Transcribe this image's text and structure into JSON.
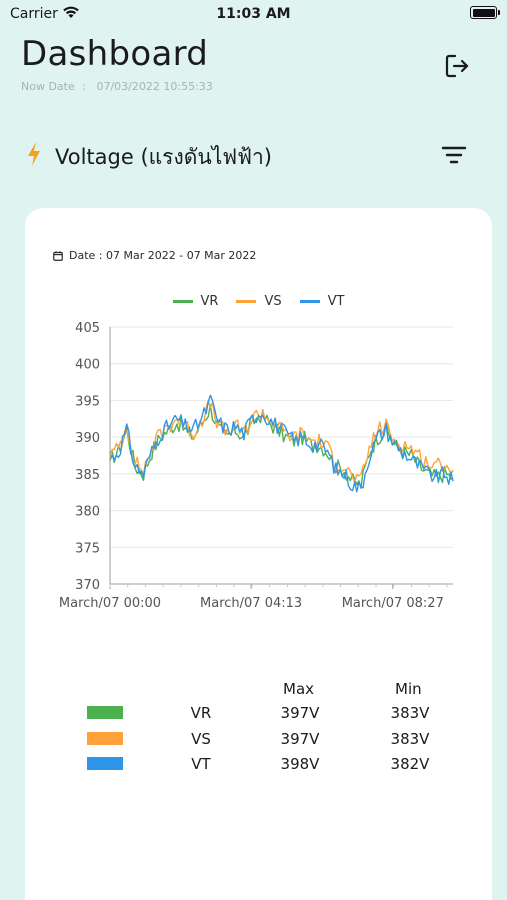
{
  "status_bar": {
    "carrier": "Carrier",
    "time": "11:03 AM"
  },
  "header": {
    "title": "Dashboard",
    "now_date_label": "Now Date",
    "now_date_sep": ":",
    "now_date_value": "07/03/2022 10:55:33",
    "logout_icon": "logout-icon"
  },
  "section": {
    "icon": "lightning-bolt-icon",
    "title": "Voltage (แรงดันไฟฟ้า)",
    "filter_icon": "filter-icon"
  },
  "card": {
    "date_range": "Date : 07 Mar 2022 - 07 Mar 2022"
  },
  "colors": {
    "VR": "#4caf50",
    "VS": "#ffa23a",
    "VT": "#2f95e8",
    "accent": "#f7a21b"
  },
  "chart_data": {
    "type": "line",
    "ylim": [
      370,
      405
    ],
    "yticks": [
      "405",
      "400",
      "395",
      "390",
      "385",
      "380",
      "375",
      "370"
    ],
    "xticks": [
      "March/07 00:00",
      "March/07 04:13",
      "March/07 08:27"
    ],
    "xrange_hours": [
      0,
      10.25
    ],
    "grid": true,
    "legend_position": "top-center",
    "series": [
      {
        "name": "VR",
        "color": "#4caf50",
        "x": [
          0,
          0.25,
          0.5,
          0.75,
          1,
          1.25,
          1.5,
          1.75,
          2,
          2.25,
          2.5,
          2.75,
          3,
          3.25,
          3.5,
          3.75,
          4,
          4.25,
          4.5,
          4.75,
          5,
          5.25,
          5.5,
          5.75,
          6,
          6.25,
          6.5,
          6.75,
          7,
          7.25,
          7.5,
          7.75,
          8,
          8.25,
          8.5,
          8.75,
          9,
          9.25,
          9.5,
          9.75,
          10,
          10.25
        ],
        "values": [
          387,
          388,
          391,
          386,
          385,
          388,
          390,
          391,
          392,
          391,
          390,
          392,
          394,
          391,
          390,
          391,
          390,
          392,
          393,
          392,
          391,
          390,
          389.5,
          390,
          389,
          389,
          388,
          386,
          385.5,
          384,
          383.5,
          388,
          390,
          391,
          389,
          388,
          387.5,
          386,
          385,
          384.5,
          385,
          384.5
        ]
      },
      {
        "name": "VS",
        "color": "#ffa23a",
        "x": [
          0,
          0.25,
          0.5,
          0.75,
          1,
          1.25,
          1.5,
          1.75,
          2,
          2.25,
          2.5,
          2.75,
          3,
          3.25,
          3.5,
          3.75,
          4,
          4.25,
          4.5,
          4.75,
          5,
          5.25,
          5.5,
          5.75,
          6,
          6.25,
          6.5,
          6.75,
          7,
          7.25,
          7.5,
          7.75,
          8,
          8.25,
          8.5,
          8.75,
          9,
          9.25,
          9.5,
          9.75,
          10,
          10.25
        ],
        "values": [
          387.5,
          388.5,
          391.5,
          386.5,
          385.5,
          388.5,
          390.5,
          391.5,
          392.5,
          391.5,
          390.5,
          392.5,
          394.5,
          391.5,
          390.5,
          391.5,
          390.5,
          392.5,
          393.5,
          392.5,
          391.5,
          390.5,
          390,
          390.5,
          389.5,
          389.5,
          388.5,
          386.5,
          386,
          384.5,
          384,
          388.5,
          391,
          391.5,
          389.5,
          389,
          388.5,
          387.5,
          386.5,
          386,
          386.5,
          385.5
        ]
      },
      {
        "name": "VT",
        "color": "#2f95e8",
        "x": [
          0,
          0.25,
          0.5,
          0.75,
          1,
          1.25,
          1.5,
          1.75,
          2,
          2.25,
          2.5,
          2.75,
          3,
          3.25,
          3.5,
          3.75,
          4,
          4.25,
          4.5,
          4.75,
          5,
          5.25,
          5.5,
          5.75,
          6,
          6.25,
          6.5,
          6.75,
          7,
          7.25,
          7.5,
          7.75,
          8,
          8.25,
          8.5,
          8.75,
          9,
          9.25,
          9.5,
          9.75,
          10,
          10.25
        ],
        "values": [
          387,
          388,
          391,
          386,
          385,
          388,
          390.5,
          391.5,
          392.5,
          391.5,
          391,
          392.5,
          395,
          392,
          391,
          391.5,
          390.5,
          392.5,
          393.5,
          392.5,
          391.5,
          390.5,
          389.5,
          390,
          389,
          389,
          388,
          385.5,
          385,
          383.5,
          383,
          387.5,
          390,
          391,
          389,
          388,
          387,
          386,
          385,
          384.5,
          385,
          384
        ]
      }
    ]
  },
  "summary": {
    "headers": {
      "max": "Max",
      "min": "Min"
    },
    "rows": [
      {
        "name": "VR",
        "max": "397V",
        "min": "383V",
        "color": "#4caf50"
      },
      {
        "name": "VS",
        "max": "397V",
        "min": "383V",
        "color": "#ffa23a"
      },
      {
        "name": "VT",
        "max": "398V",
        "min": "382V",
        "color": "#2f95e8"
      }
    ]
  }
}
